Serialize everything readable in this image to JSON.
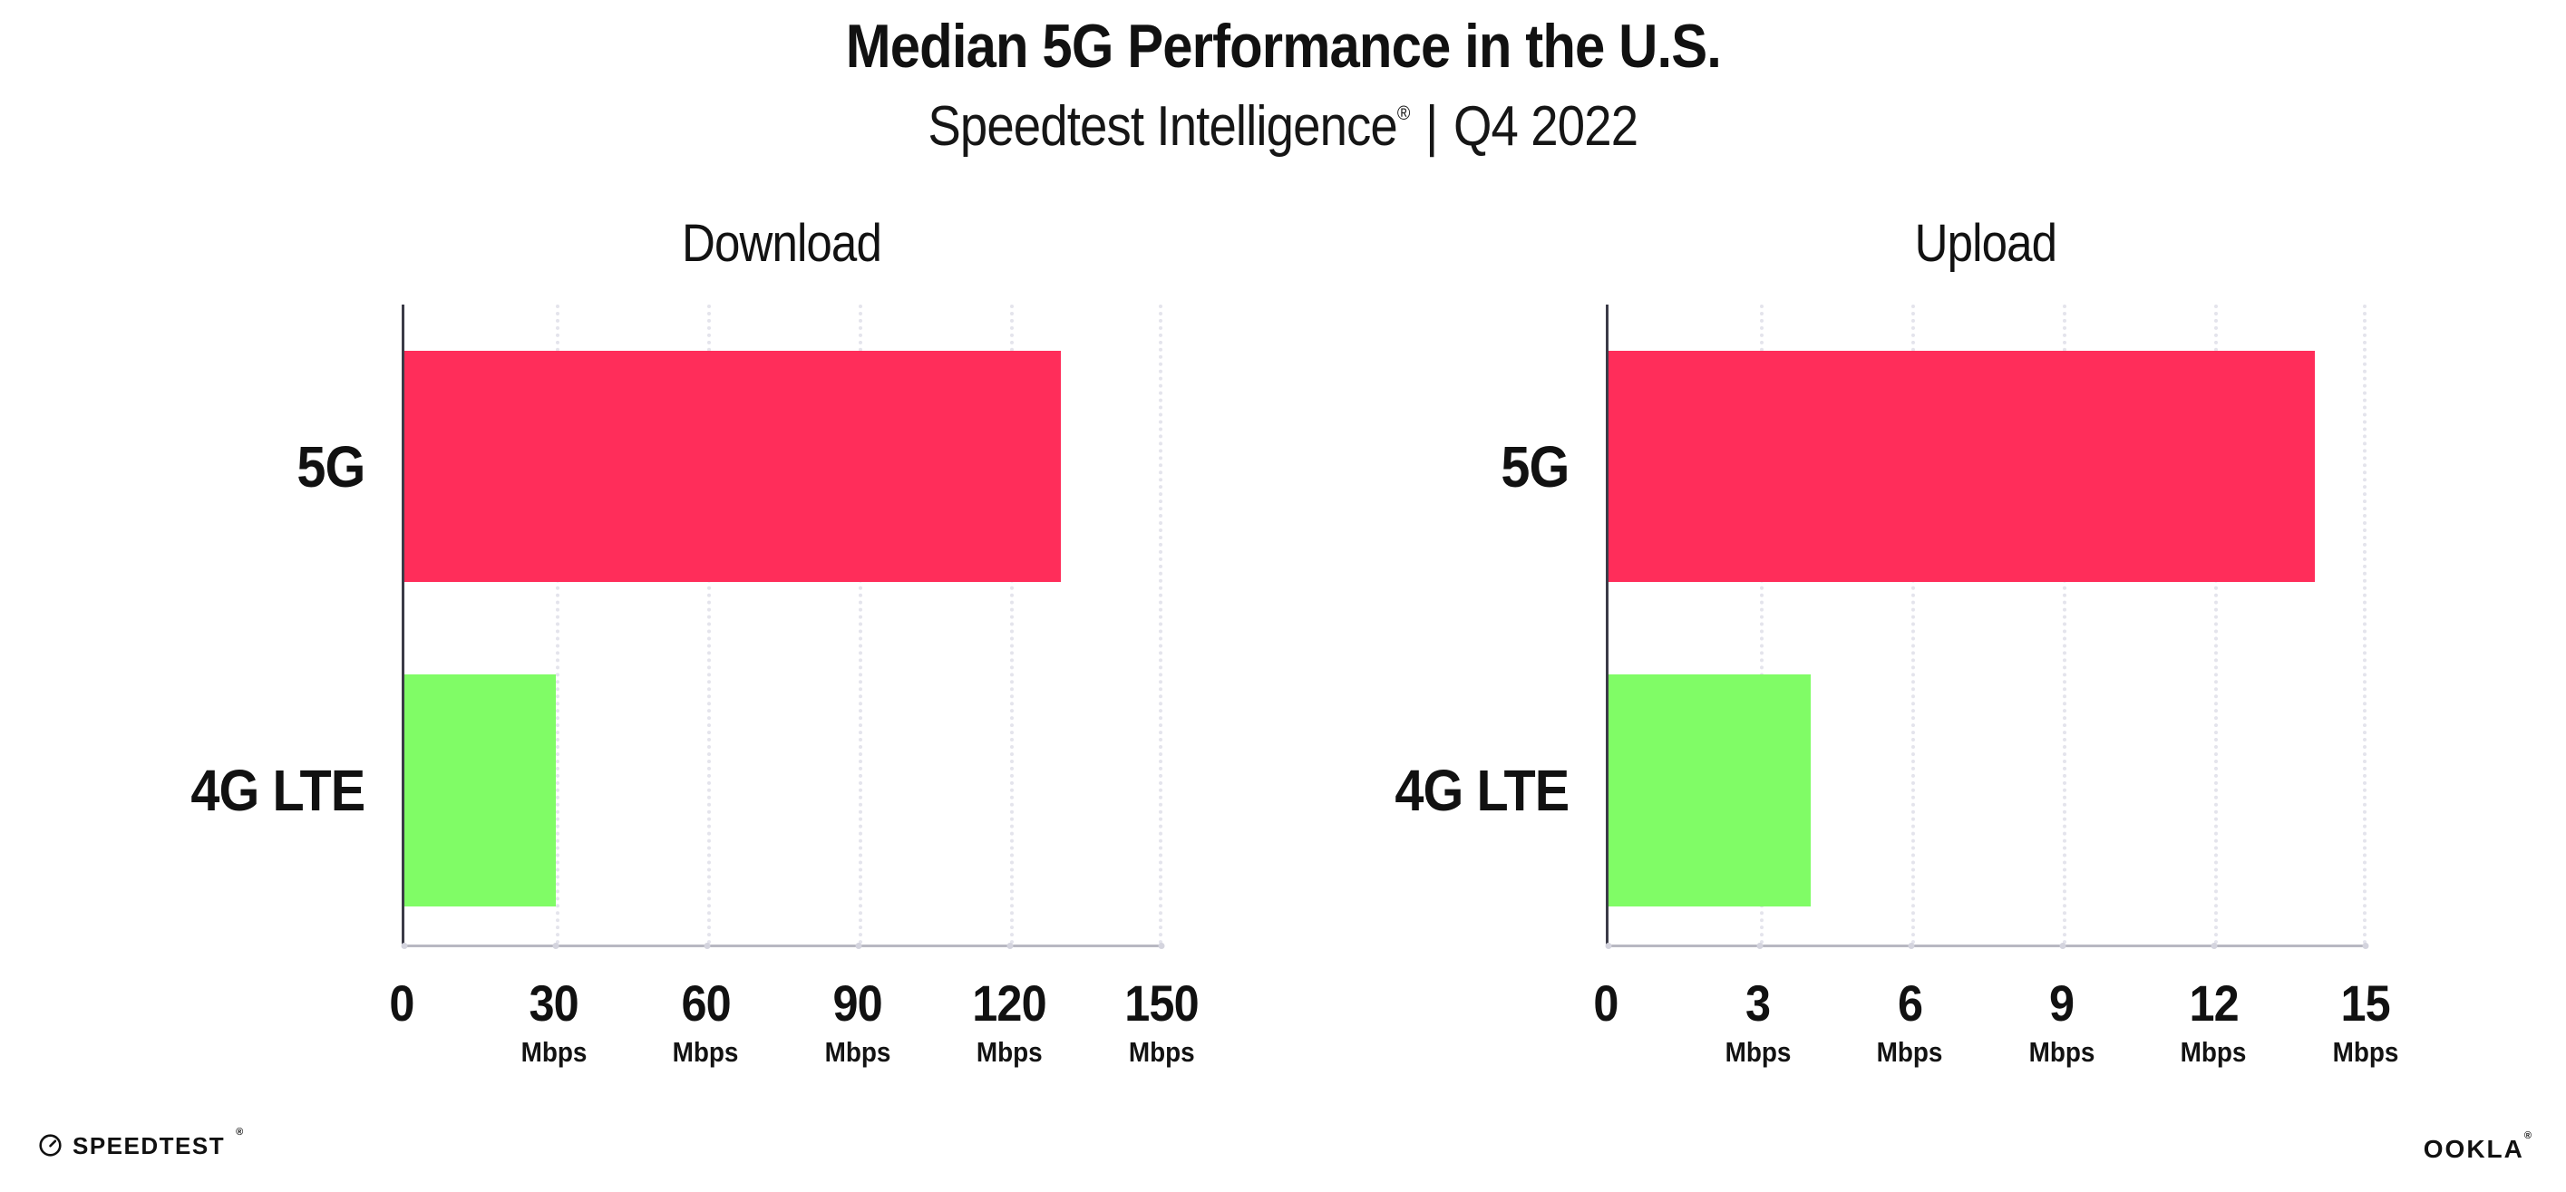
{
  "header": {
    "title": "Median 5G Performance in the U.S.",
    "subtitle_brand": "Speedtest Intelligence",
    "subtitle_reg": "®",
    "subtitle_separator": "|",
    "subtitle_period": "Q4 2022"
  },
  "chart_data": [
    {
      "type": "bar",
      "orientation": "horizontal",
      "title": "Download",
      "categories": [
        "5G",
        "4G LTE"
      ],
      "values": [
        130,
        30
      ],
      "unit": "Mbps",
      "xlabel": "",
      "ylabel": "",
      "xlim": [
        0,
        150
      ],
      "xticks": [
        0,
        30,
        60,
        90,
        120,
        150
      ],
      "bar_colors": [
        "#FF2D5A",
        "#80FC66"
      ],
      "grid": "vertical dotted gridlines at each tick",
      "legend": "none"
    },
    {
      "type": "bar",
      "orientation": "horizontal",
      "title": "Upload",
      "categories": [
        "5G",
        "4G LTE"
      ],
      "values": [
        14,
        4
      ],
      "unit": "Mbps",
      "xlabel": "",
      "ylabel": "",
      "xlim": [
        0,
        15
      ],
      "xticks": [
        0,
        3,
        6,
        9,
        12,
        15
      ],
      "bar_colors": [
        "#FF2D5A",
        "#80FC66"
      ],
      "grid": "vertical dotted gridlines at each tick",
      "legend": "none"
    }
  ],
  "colors": {
    "bar_5g": "#FF2D5A",
    "bar_4g_lte": "#80FC66",
    "axis_spine": "#3B3B47",
    "axis_baseline": "#B8B8C2",
    "gridline": "#E4E4EC",
    "text": "#111111",
    "background": "#FFFFFF"
  },
  "footer": {
    "speedtest_icon": "gauge-icon",
    "speedtest_text": "SPEEDTEST",
    "speedtest_mark": "®",
    "ookla_text": "OOKLA",
    "ookla_mark": "®"
  }
}
